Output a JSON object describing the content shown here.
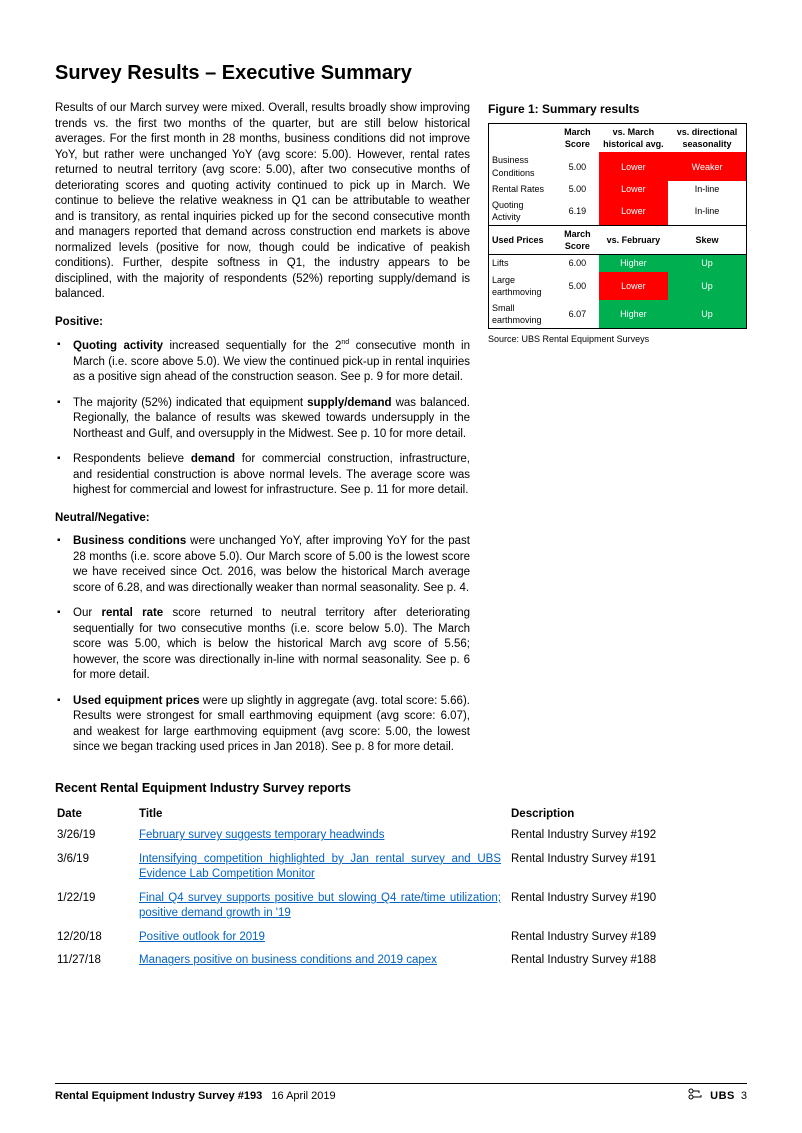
{
  "title": "Survey Results – Executive Summary",
  "intro": "Results of our March survey were mixed. Overall, results broadly show improving trends vs. the first two months of the quarter, but are still below historical averages.  For the first month in 28 months, business conditions did not improve YoY, but rather were unchanged YoY (avg score: 5.00). However, rental rates returned to neutral territory (avg score: 5.00), after two consecutive months of deteriorating scores and quoting activity continued to pick up in March. We continue to believe the relative weakness in Q1 can be attributable to weather and is transitory, as rental inquiries picked up for the second consecutive month and managers reported that demand across construction end markets is above normalized levels (positive for now, though could be indicative of peakish conditions). Further, despite softness in Q1, the industry appears to be disciplined, with the majority of respondents (52%) reporting supply/demand is balanced.",
  "positive_label": "Positive:",
  "positive_items": [
    {
      "b": "Quoting activity",
      "rest": " increased sequentially for the 2",
      "sup": "nd",
      "tail": " consecutive month in March (i.e. score above 5.0). We view the continued pick-up in rental inquiries as a positive sign ahead of the construction season. See p. 9 for more detail."
    },
    {
      "pre": "The majority (52%) indicated that equipment ",
      "b": "supply/demand",
      "rest": " was balanced. Regionally, the balance of results was skewed towards undersupply in the Northeast and Gulf, and oversupply in the Midwest. See p. 10 for more detail."
    },
    {
      "pre": "Respondents believe ",
      "b": "demand",
      "rest": " for commercial construction, infrastructure, and residential construction is above normal levels. The average score was highest for commercial and lowest for infrastructure. See p. 11 for more detail."
    }
  ],
  "neutral_label": "Neutral/Negative:",
  "neutral_items": [
    {
      "b": "Business conditions",
      "rest": " were unchanged YoY, after improving YoY for the past 28 months (i.e. score above 5.0). Our March score of 5.00 is the lowest score we have received since Oct. 2016, was below the historical March average score of 6.28, and was directionally weaker than normal seasonality. See p. 4."
    },
    {
      "pre": "Our ",
      "b": "rental rate",
      "rest": " score returned to neutral territory after deteriorating sequentially for two consecutive months (i.e. score below 5.0). The March score was 5.00, which is below the historical March avg score of 5.56; however, the score was directionally in-line with normal seasonality. See p. 6 for more detail."
    },
    {
      "b": "Used equipment prices",
      "rest": " were up slightly in aggregate (avg. total score: 5.66). Results were strongest for small earthmoving equipment (avg score: 6.07), and weakest for large earthmoving equipment (avg score: 5.00, the lowest since we began tracking used prices in Jan 2018). See p. 8 for more detail."
    }
  ],
  "figure": {
    "title": "Figure 1:  Summary results",
    "colors": {
      "red": "#ff0000",
      "green": "#00b050",
      "text_on_fill": "#ffffff"
    },
    "header1": [
      "",
      "March Score",
      "vs. March historical avg.",
      "vs. directional seasonality"
    ],
    "rows1": [
      {
        "label": "Business Conditions",
        "score": "5.00",
        "c2": "Lower",
        "c2fill": "red",
        "c3": "Weaker",
        "c3fill": "red"
      },
      {
        "label": "Rental Rates",
        "score": "5.00",
        "c2": "Lower",
        "c2fill": "red",
        "c3": "In-line",
        "c3fill": ""
      },
      {
        "label": "Quoting Activity",
        "score": "6.19",
        "c2": "Lower",
        "c2fill": "red",
        "c3": "In-line",
        "c3fill": ""
      }
    ],
    "header2": [
      "Used Prices",
      "March Score",
      "vs. February",
      "Skew"
    ],
    "rows2": [
      {
        "label": "Lifts",
        "score": "6.00",
        "c2": "Higher",
        "c2fill": "green",
        "c3": "Up",
        "c3fill": "green"
      },
      {
        "label": "Large earthmoving",
        "score": "5.00",
        "c2": "Lower",
        "c2fill": "red",
        "c3": "Up",
        "c3fill": "green"
      },
      {
        "label": "Small earthmoving",
        "score": "6.07",
        "c2": "Higher",
        "c2fill": "green",
        "c3": "Up",
        "c3fill": "green"
      }
    ],
    "source": "Source:   UBS Rental Equipment Surveys"
  },
  "reports_title": "Recent Rental Equipment Industry Survey reports",
  "reports_headers": {
    "date": "Date",
    "title": "Title",
    "desc": "Description"
  },
  "reports": [
    {
      "date": "3/26/19",
      "title": "February survey suggests temporary headwinds",
      "desc": "Rental Industry Survey #192"
    },
    {
      "date": "3/6/19",
      "title": "Intensifying competition highlighted by Jan rental survey and UBS Evidence Lab Competition Monitor",
      "desc": "Rental Industry Survey #191"
    },
    {
      "date": "1/22/19",
      "title": "Final Q4 survey supports positive but slowing Q4 rate/time utilization; positive demand growth in '19",
      "desc": "Rental Industry Survey #190"
    },
    {
      "date": "12/20/18",
      "title": "Positive outlook for 2019",
      "desc": "Rental Industry Survey #189"
    },
    {
      "date": "11/27/18",
      "title": "Managers positive on business conditions and 2019 capex",
      "desc": "Rental Industry Survey #188"
    }
  ],
  "footer": {
    "doc_title": "Rental Equipment Industry Survey #193",
    "date": "16 April 2019",
    "brand": "UBS",
    "page": "3"
  }
}
